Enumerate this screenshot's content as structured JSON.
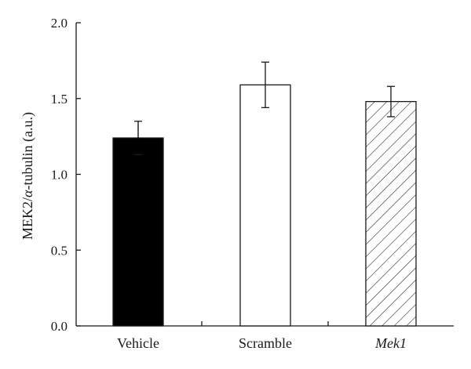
{
  "chart_data": {
    "type": "bar",
    "title": "",
    "xlabel": "",
    "ylabel_main": "MEK2/",
    "ylabel_symbol": "α",
    "ylabel_rest": "-tubulin (a.u.)",
    "ylim": [
      0,
      2.0
    ],
    "yticks": [
      {
        "value": 0.0,
        "label": "0.0"
      },
      {
        "value": 0.5,
        "label": "0.5"
      },
      {
        "value": 1.0,
        "label": "1.0"
      },
      {
        "value": 1.5,
        "label": "1.5"
      },
      {
        "value": 2.0,
        "label": "2.0"
      }
    ],
    "categories": [
      "Vehicle",
      "Scramble",
      "Mek1"
    ],
    "category_italic": [
      false,
      false,
      true
    ],
    "values": [
      1.24,
      1.59,
      1.48
    ],
    "errors": [
      0.11,
      0.15,
      0.1
    ],
    "fills": [
      "solid-black",
      "white",
      "diagonal-hatch"
    ],
    "colors": {
      "bar_stroke": "#1a1a1a",
      "solid": "#000000",
      "open": "#ffffff"
    },
    "grid": false,
    "legend": "none"
  }
}
